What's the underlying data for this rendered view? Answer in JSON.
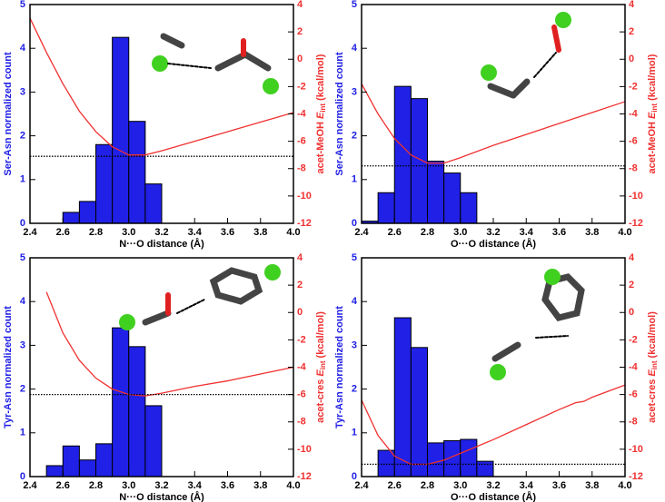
{
  "chart_data": [
    {
      "type": "histogram",
      "ylabel": "Ser-Asn normalized count",
      "y2label": [
        "acet-MeOH",
        "E",
        "int",
        "(kcal/mol)"
      ],
      "xlabel": "N···O distance (Å)",
      "bins": [
        2.6,
        2.7,
        2.8,
        2.9,
        3.0,
        3.1,
        3.2
      ],
      "counts": [
        0.25,
        0.5,
        1.8,
        4.25,
        2.33,
        0.9
      ],
      "color": "#2020e6",
      "line": {
        "x": [
          2.4,
          2.5,
          2.6,
          2.7,
          2.8,
          2.9,
          3.0,
          3.1,
          3.2,
          3.4,
          3.6,
          3.8,
          4.0
        ],
        "values": [
          3.0,
          0.5,
          -1.8,
          -3.8,
          -5.3,
          -6.4,
          -7.0,
          -7.0,
          -6.7,
          -6.0,
          -5.3,
          -4.6,
          -3.9
        ],
        "color": "#f03030",
        "axis": "y2"
      },
      "hline": {
        "value": -7.1,
        "axis": "y2"
      },
      "xlim": [
        2.4,
        4.0
      ],
      "xticks": [
        2.4,
        2.6,
        2.8,
        {
          "value": 3.0,
          "label": "3.0"
        },
        3.2,
        3.4,
        3.6,
        3.8,
        {
          "value": 4.0,
          "label": "4.0"
        }
      ],
      "ylim": [
        0,
        5
      ],
      "yticks": [
        0,
        1,
        2,
        3,
        4,
        5
      ],
      "y2lim": [
        -12,
        4
      ],
      "y2ticks": [
        -12,
        -10,
        -8,
        -6,
        -4,
        -2,
        0,
        2,
        4
      ]
    },
    {
      "type": "histogram",
      "ylabel": "Ser-Asn normalized count",
      "y2label": [
        "acet-MeOH",
        "E",
        "int",
        "(kcal/mol)"
      ],
      "xlabel": "O···O distance (Å)",
      "bins": [
        2.4,
        2.5,
        2.6,
        2.7,
        2.8,
        2.9,
        3.0,
        3.1
      ],
      "counts": [
        0.05,
        0.7,
        3.13,
        2.85,
        1.42,
        1.15,
        0.7
      ],
      "color": "#2020e6",
      "line": {
        "x": [
          2.4,
          2.5,
          2.6,
          2.7,
          2.8,
          2.9,
          3.0,
          3.2,
          3.4,
          3.6,
          3.8,
          4.0
        ],
        "values": [
          -1.8,
          -4.0,
          -5.8,
          -7.0,
          -7.6,
          -7.6,
          -7.2,
          -6.3,
          -5.5,
          -4.7,
          -3.9,
          -3.1
        ],
        "color": "#f03030",
        "axis": "y2"
      },
      "hline": {
        "value": -7.8,
        "axis": "y2"
      },
      "xlim": [
        2.4,
        4.0
      ],
      "xticks": [
        2.4,
        2.6,
        2.8,
        {
          "value": 3.0,
          "label": "3.0"
        },
        3.2,
        3.4,
        3.6,
        3.8,
        {
          "value": 4.0,
          "label": "4.0"
        }
      ],
      "ylim": [
        0,
        5
      ],
      "yticks": [
        0,
        1,
        2,
        3,
        4,
        5
      ],
      "y2lim": [
        -12,
        4
      ],
      "y2ticks": [
        -12,
        -10,
        -8,
        -6,
        -4,
        -2,
        0,
        2,
        4
      ]
    },
    {
      "type": "histogram",
      "ylabel": "Tyr-Asn normalized count",
      "y2label": [
        "acet-cres",
        "E",
        "int",
        "(kcal/mol)"
      ],
      "xlabel": "N···O distance (Å)",
      "bins": [
        2.5,
        2.6,
        2.7,
        2.8,
        2.9,
        3.0,
        3.1,
        3.2
      ],
      "counts": [
        0.25,
        0.7,
        0.38,
        0.75,
        3.4,
        2.97,
        1.62
      ],
      "color": "#2020e6",
      "line": {
        "x": [
          2.5,
          2.6,
          2.7,
          2.8,
          2.9,
          3.0,
          3.1,
          3.2,
          3.4,
          3.6,
          3.8,
          4.0
        ],
        "values": [
          1.5,
          -1.5,
          -3.5,
          -4.8,
          -5.6,
          -6.0,
          -6.1,
          -5.9,
          -5.4,
          -5.0,
          -4.5,
          -4.0
        ],
        "color": "#f03030",
        "axis": "y2"
      },
      "hline": {
        "value": -6.0,
        "axis": "y2"
      },
      "xlim": [
        2.4,
        4.0
      ],
      "xticks": [
        2.4,
        2.6,
        2.8,
        {
          "value": 3.0,
          "label": "3.0"
        },
        3.2,
        3.4,
        3.6,
        3.8,
        {
          "value": 4.0,
          "label": "4.0"
        }
      ],
      "ylim": [
        0,
        5
      ],
      "yticks": [
        0,
        1,
        2,
        3,
        4,
        5
      ],
      "y2lim": [
        -12,
        4
      ],
      "y2ticks": [
        -12,
        -10,
        -8,
        -6,
        -4,
        -2,
        0,
        2,
        4
      ]
    },
    {
      "type": "histogram",
      "ylabel": "Tyr-Asn normalized count",
      "y2label": [
        "acet-cres",
        "E",
        "int",
        "(kcal/mol)"
      ],
      "xlabel": "O···O distance (Å)",
      "bins": [
        2.5,
        2.6,
        2.7,
        2.8,
        2.9,
        3.0,
        3.1,
        3.2
      ],
      "counts": [
        0.6,
        3.63,
        2.95,
        0.77,
        0.82,
        0.85,
        0.35
      ],
      "color": "#2020e6",
      "line": {
        "x": [
          2.4,
          2.5,
          2.6,
          2.7,
          2.8,
          2.9,
          3.0,
          3.2,
          3.4,
          3.6,
          3.7,
          3.75,
          3.8,
          4.0
        ],
        "values": [
          -6.4,
          -9.0,
          -10.5,
          -11.1,
          -11.1,
          -10.8,
          -10.3,
          -9.3,
          -8.2,
          -7.1,
          -6.6,
          -6.5,
          -6.2,
          -5.3
        ],
        "color": "#f03030",
        "axis": "y2"
      },
      "hline": {
        "value": -11.1,
        "axis": "y2"
      },
      "xlim": [
        2.4,
        4.0
      ],
      "xticks": [
        2.4,
        2.6,
        2.8,
        {
          "value": 3.0,
          "label": "3.0"
        },
        3.2,
        3.4,
        3.6,
        3.8,
        {
          "value": 4.0,
          "label": "4.0"
        }
      ],
      "ylim": [
        0,
        5
      ],
      "yticks": [
        0,
        1,
        2,
        3,
        4,
        5
      ],
      "y2lim": [
        -12,
        4
      ],
      "y2ticks": [
        -12,
        -10,
        -8,
        -6,
        -4,
        -2,
        0,
        2,
        4
      ]
    }
  ]
}
